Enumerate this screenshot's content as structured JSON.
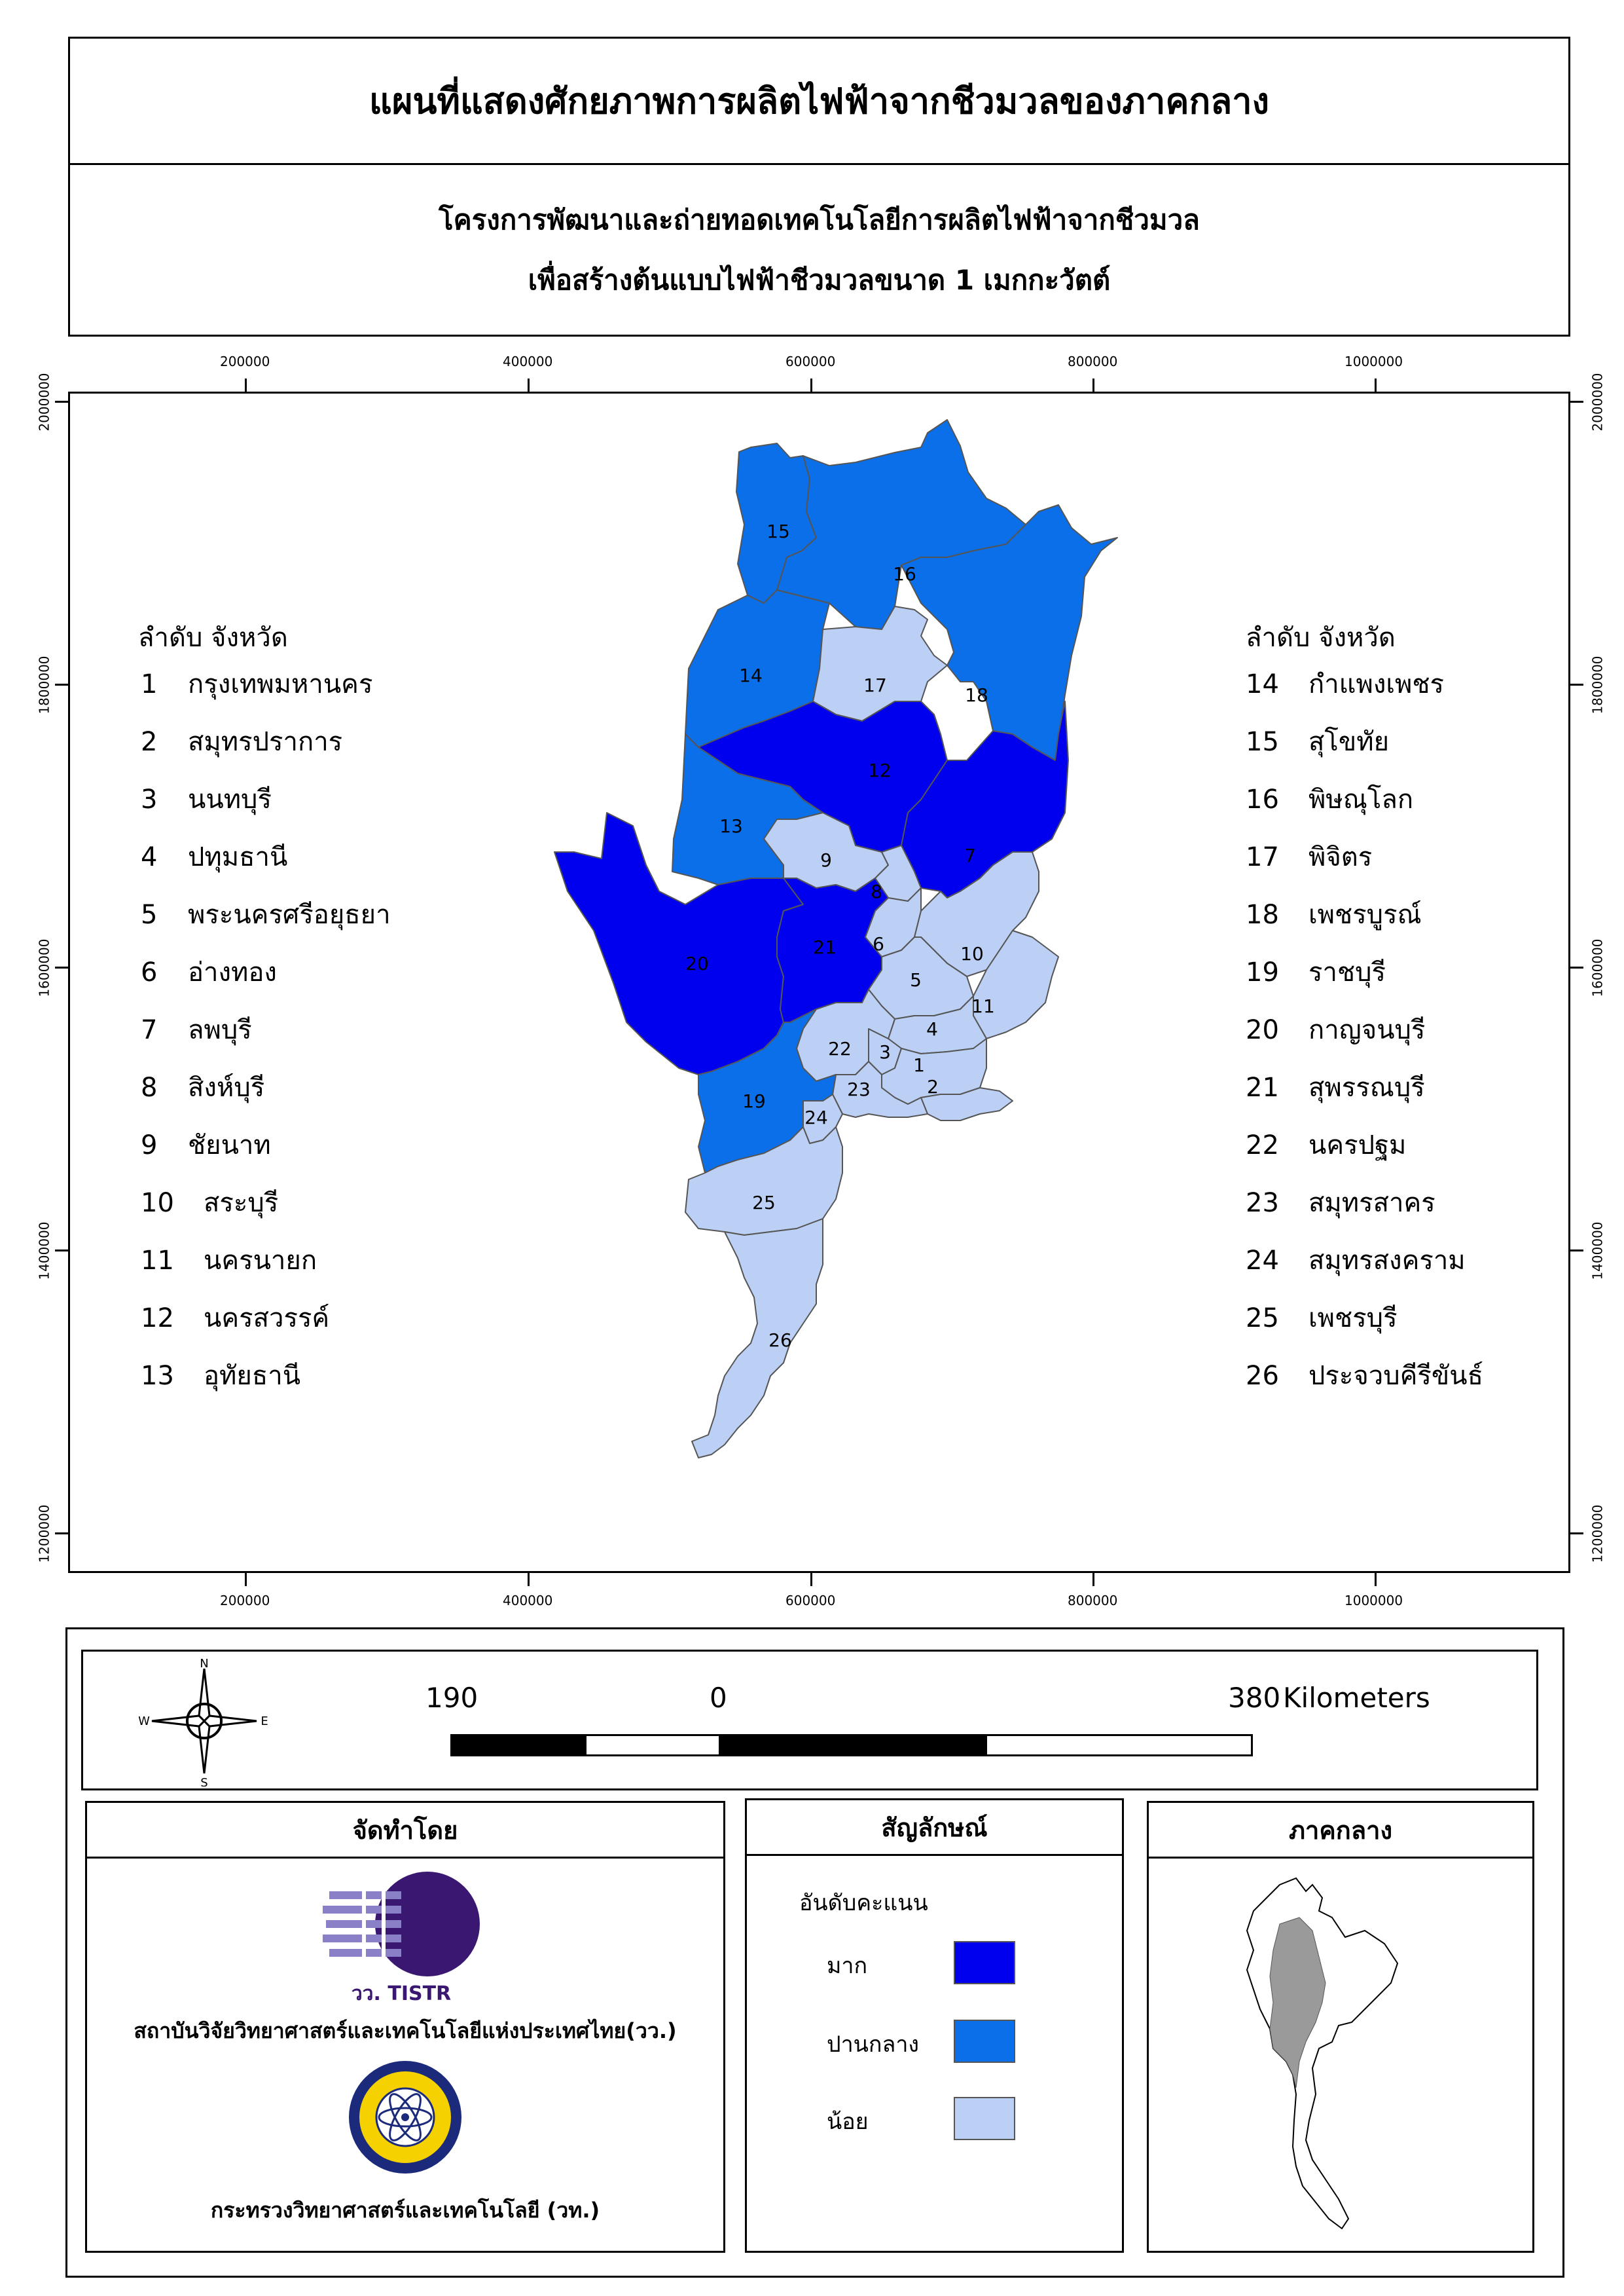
{
  "title": "แผนที่แสดงศักยภาพการผลิตไฟฟ้าจากชีวมวลของภาคกลาง",
  "subtitle_line1": "โครงการพัฒนาและถ่ายทอดเทคโนโลยีการผลิตไฟฟ้าจากชีวมวล",
  "subtitle_line2": "เพื่อสร้างต้นแบบไฟฟ้าชีวมวลขนาด 1 เมกกะวัตต์",
  "x_ticks": [
    "200000",
    "400000",
    "600000",
    "800000",
    "1000000"
  ],
  "y_ticks": [
    "2000000",
    "1800000",
    "1600000",
    "1400000",
    "1200000"
  ],
  "list_header": "ลำดับ  จังหวัด",
  "provinces_left": [
    {
      "no": "1",
      "name": "กรุงเทพมหานคร"
    },
    {
      "no": "2",
      "name": "สมุทรปราการ"
    },
    {
      "no": "3",
      "name": "นนทบุรี"
    },
    {
      "no": "4",
      "name": "ปทุมธานี"
    },
    {
      "no": "5",
      "name": "พระนครศรีอยุธยา"
    },
    {
      "no": "6",
      "name": "อ่างทอง"
    },
    {
      "no": "7",
      "name": "ลพบุรี"
    },
    {
      "no": "8",
      "name": "สิงห์บุรี"
    },
    {
      "no": "9",
      "name": "ชัยนาท"
    },
    {
      "no": "10",
      "name": "สระบุรี"
    },
    {
      "no": "11",
      "name": "นครนายก"
    },
    {
      "no": "12",
      "name": "นครสวรรค์"
    },
    {
      "no": "13",
      "name": "อุทัยธานี"
    }
  ],
  "provinces_right": [
    {
      "no": "14",
      "name": "กำแพงเพชร"
    },
    {
      "no": "15",
      "name": "สุโขทัย"
    },
    {
      "no": "16",
      "name": "พิษณุโลก"
    },
    {
      "no": "17",
      "name": "พิจิตร"
    },
    {
      "no": "18",
      "name": "เพชรบูรณ์"
    },
    {
      "no": "19",
      "name": "ราชบุรี"
    },
    {
      "no": "20",
      "name": "กาญจนบุรี"
    },
    {
      "no": "21",
      "name": "สุพรรณบุรี"
    },
    {
      "no": "22",
      "name": "นครปฐม"
    },
    {
      "no": "23",
      "name": "สมุทรสาคร"
    },
    {
      "no": "24",
      "name": "สมุทรสงคราม"
    },
    {
      "no": "25",
      "name": "เพชรบุรี"
    },
    {
      "no": "26",
      "name": "ประจวบคีรีขันธ์"
    }
  ],
  "compass": {
    "n": "N",
    "s": "S",
    "e": "E",
    "w": "W"
  },
  "scale": {
    "left": "190",
    "mid": "0",
    "right": "380",
    "unit": "Kilometers"
  },
  "producer": {
    "heading": "จัดทำโดย",
    "logo1_text": "วว. TISTR",
    "org1": "สถาบันวิจัยวิทยาศาสตร์และเทคโนโลยีแห่งประเทศไทย(วว.)",
    "org2": "กระทรวงวิทยาศาสตร์และเทคโนโลยี (วท.)"
  },
  "legend": {
    "heading": "สัญลักษณ์",
    "title": "อันดับคะแนน",
    "items": [
      {
        "label": "มาก",
        "color": "#0000ee"
      },
      {
        "label": "ปานกลาง",
        "color": "#0a6fe8"
      },
      {
        "label": "น้อย",
        "color": "#bcd0f5"
      }
    ]
  },
  "inset": {
    "heading": "ภาคกลาง"
  },
  "colors": {
    "high": "#0000ee",
    "medium": "#0a6fe8",
    "low": "#bcd0f5",
    "border": "#555555"
  },
  "region_numbers": [
    "1",
    "2",
    "3",
    "4",
    "5",
    "6",
    "7",
    "8",
    "9",
    "10",
    "11",
    "12",
    "13",
    "14",
    "15",
    "16",
    "17",
    "18",
    "19",
    "20",
    "21",
    "22",
    "23",
    "24",
    "25",
    "26"
  ]
}
